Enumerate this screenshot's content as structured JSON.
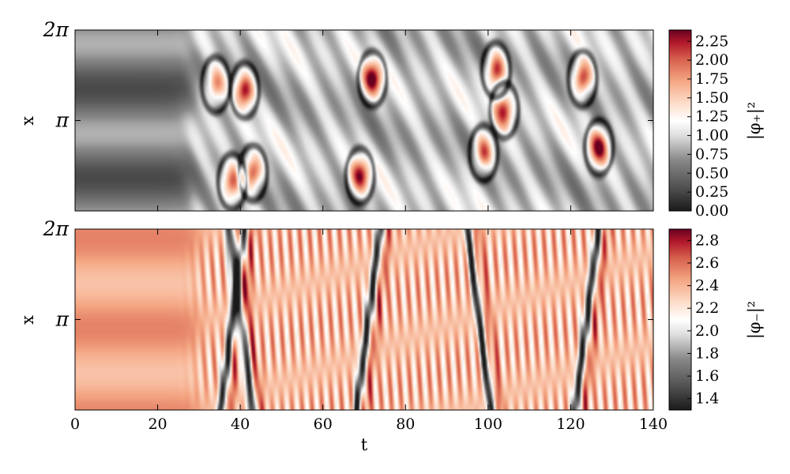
{
  "chart_data": [
    {
      "type": "heatmap",
      "title": "",
      "xlabel": "",
      "ylabel": "x",
      "xlim": [
        0,
        140
      ],
      "ylim": [
        0,
        6.2832
      ],
      "y_ticks": [
        {
          "value": 3.1416,
          "label": "π"
        },
        {
          "value": 6.2832,
          "label": "2π"
        }
      ],
      "colorbar": {
        "label": "|φ₊|²",
        "range": [
          0,
          2.4
        ],
        "ticks": [
          0.0,
          0.25,
          0.5,
          0.75,
          1.0,
          1.25,
          1.5,
          1.75,
          2.0,
          2.25
        ],
        "tick_labels": [
          "0.00",
          "0.25",
          "0.50",
          "0.75",
          "1.00",
          "1.25",
          "1.50",
          "1.75",
          "2.00",
          "2.25"
        ],
        "colormap": "RdGy_r",
        "colors": [
          "#1a1a1a",
          "#ffffff",
          "#67001f"
        ]
      },
      "field": {
        "quiet_phase_end_t": 28,
        "bright_peaks": [
          {
            "t": 41,
            "x": 4.2,
            "value": 2.3
          },
          {
            "t": 43,
            "x": 1.3,
            "value": 2.2
          },
          {
            "t": 38,
            "x": 1.0,
            "value": 2.0
          },
          {
            "t": 34,
            "x": 4.4,
            "value": 1.8
          },
          {
            "t": 69,
            "x": 1.2,
            "value": 2.1
          },
          {
            "t": 72,
            "x": 4.6,
            "value": 2.3
          },
          {
            "t": 99,
            "x": 2.0,
            "value": 2.1
          },
          {
            "t": 102,
            "x": 4.9,
            "value": 2.3
          },
          {
            "t": 104,
            "x": 3.5,
            "value": 2.1
          },
          {
            "t": 123,
            "x": 4.6,
            "value": 2.3
          },
          {
            "t": 127,
            "x": 2.2,
            "value": 2.2
          }
        ]
      }
    },
    {
      "type": "heatmap",
      "title": "",
      "xlabel": "t",
      "ylabel": "x",
      "xlim": [
        0,
        140
      ],
      "ylim": [
        0,
        6.2832
      ],
      "x_ticks": [
        0,
        20,
        40,
        60,
        80,
        100,
        120,
        140
      ],
      "x_tick_labels": [
        "0",
        "20",
        "40",
        "60",
        "80",
        "100",
        "120",
        "140"
      ],
      "y_ticks": [
        {
          "value": 3.1416,
          "label": "π"
        },
        {
          "value": 6.2832,
          "label": "2π"
        }
      ],
      "colorbar": {
        "label": "|φ₋|²",
        "range": [
          1.3,
          2.9
        ],
        "ticks": [
          1.4,
          1.6,
          1.8,
          2.0,
          2.2,
          2.4,
          2.6,
          2.8
        ],
        "tick_labels": [
          "1.4",
          "1.6",
          "1.8",
          "2.0",
          "2.2",
          "2.4",
          "2.6",
          "2.8"
        ],
        "colormap": "RdGy_r",
        "colors": [
          "#1a1a1a",
          "#ffffff",
          "#67001f"
        ]
      },
      "field": {
        "quiet_level": 2.45,
        "dark_bands_t": [
          38,
          40,
          71,
          98,
          124
        ]
      }
    }
  ]
}
